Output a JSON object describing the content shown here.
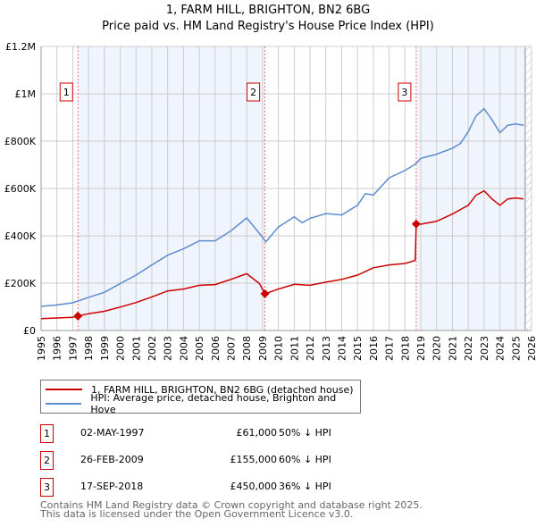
{
  "chart_data": {
    "type": "line",
    "title": "1, FARM HILL, BRIGHTON, BN2 6BG",
    "subtitle": "Price paid vs. HM Land Registry's House Price Index (HPI)",
    "xlim": [
      1995,
      2026
    ],
    "ylim": [
      0,
      1200000
    ],
    "y_ticks": [
      {
        "v": 0,
        "label": "£0"
      },
      {
        "v": 200000,
        "label": "£200K"
      },
      {
        "v": 400000,
        "label": "£400K"
      },
      {
        "v": 600000,
        "label": "£600K"
      },
      {
        "v": 800000,
        "label": "£800K"
      },
      {
        "v": 1000000,
        "label": "£1M"
      },
      {
        "v": 1200000,
        "label": "£1.2M"
      }
    ],
    "x_ticks": [
      "1995",
      "1996",
      "1997",
      "1998",
      "1999",
      "2000",
      "2001",
      "2002",
      "2003",
      "2004",
      "2005",
      "2006",
      "2007",
      "2008",
      "2009",
      "2010",
      "2011",
      "2012",
      "2013",
      "2014",
      "2015",
      "2016",
      "2017",
      "2018",
      "2019",
      "2020",
      "2021",
      "2022",
      "2023",
      "2024",
      "2025",
      "2026"
    ],
    "grid": true,
    "series": [
      {
        "name": "1, FARM HILL, BRIGHTON, BN2 6BG (detached house)",
        "color": "#cc0000",
        "x": [
          1995,
          1996,
          1997,
          1997.33,
          1998,
          1999,
          2000,
          2001,
          2002,
          2003,
          2004,
          2005,
          2006,
          2007,
          2008,
          2008.8,
          2009.15,
          2010,
          2011,
          2012,
          2013,
          2014,
          2015,
          2016,
          2017,
          2018,
          2018.65,
          2018.71,
          2019,
          2020,
          2021,
          2022,
          2022.5,
          2023,
          2023.5,
          2024,
          2024.5,
          2025,
          2025.5
        ],
        "y": [
          50000,
          53000,
          56000,
          61000,
          71000,
          81000,
          99000,
          118000,
          142000,
          167000,
          175000,
          191000,
          194000,
          216000,
          240000,
          198000,
          155000,
          175000,
          195000,
          191000,
          204000,
          216000,
          234000,
          265000,
          277000,
          283000,
          296000,
          450000,
          449000,
          461000,
          492000,
          529000,
          572000,
          590000,
          556000,
          529000,
          556000,
          560000,
          556000
        ]
      },
      {
        "name": "HPI: Average price, detached house, Brighton and Hove",
        "color": "#5b8bd0",
        "x": [
          1995,
          1996,
          1997,
          1998,
          1999,
          2000,
          2001,
          2002,
          2003,
          2004,
          2005,
          2006,
          2007,
          2008,
          2009,
          2009.2,
          2010,
          2011,
          2011.5,
          2012,
          2013,
          2014,
          2015,
          2015.5,
          2016,
          2017,
          2018,
          2018.7,
          2019,
          2020,
          2021,
          2021.5,
          2022,
          2022.5,
          2023,
          2023.5,
          2024,
          2024.5,
          2025,
          2025.5
        ],
        "y": [
          102000,
          108000,
          117000,
          140000,
          161000,
          198000,
          234000,
          277000,
          318000,
          345000,
          379000,
          379000,
          421000,
          476000,
          394000,
          374000,
          437000,
          480000,
          455000,
          474000,
          494000,
          488000,
          529000,
          578000,
          572000,
          645000,
          676000,
          705000,
          727000,
          745000,
          770000,
          790000,
          840000,
          907000,
          937000,
          890000,
          836000,
          867000,
          873000,
          867000
        ]
      }
    ],
    "sales": [
      {
        "num": "1",
        "x": 1997.33,
        "y": 61000,
        "date": "02-MAY-1997",
        "price": "£61,000",
        "hpi": "50% ↓ HPI"
      },
      {
        "num": "2",
        "x": 2009.15,
        "y": 155000,
        "date": "26-FEB-2009",
        "price": "£155,000",
        "hpi": "60% ↓ HPI"
      },
      {
        "num": "3",
        "x": 2018.71,
        "y": 450000,
        "date": "17-SEP-2018",
        "price": "£450,000",
        "hpi": "36% ↓ HPI"
      }
    ],
    "legend_placement": "bottom"
  },
  "footer": {
    "line1": "Contains HM Land Registry data © Crown copyright and database right 2025.",
    "line2": "This data is licensed under the Open Government Licence v3.0."
  }
}
